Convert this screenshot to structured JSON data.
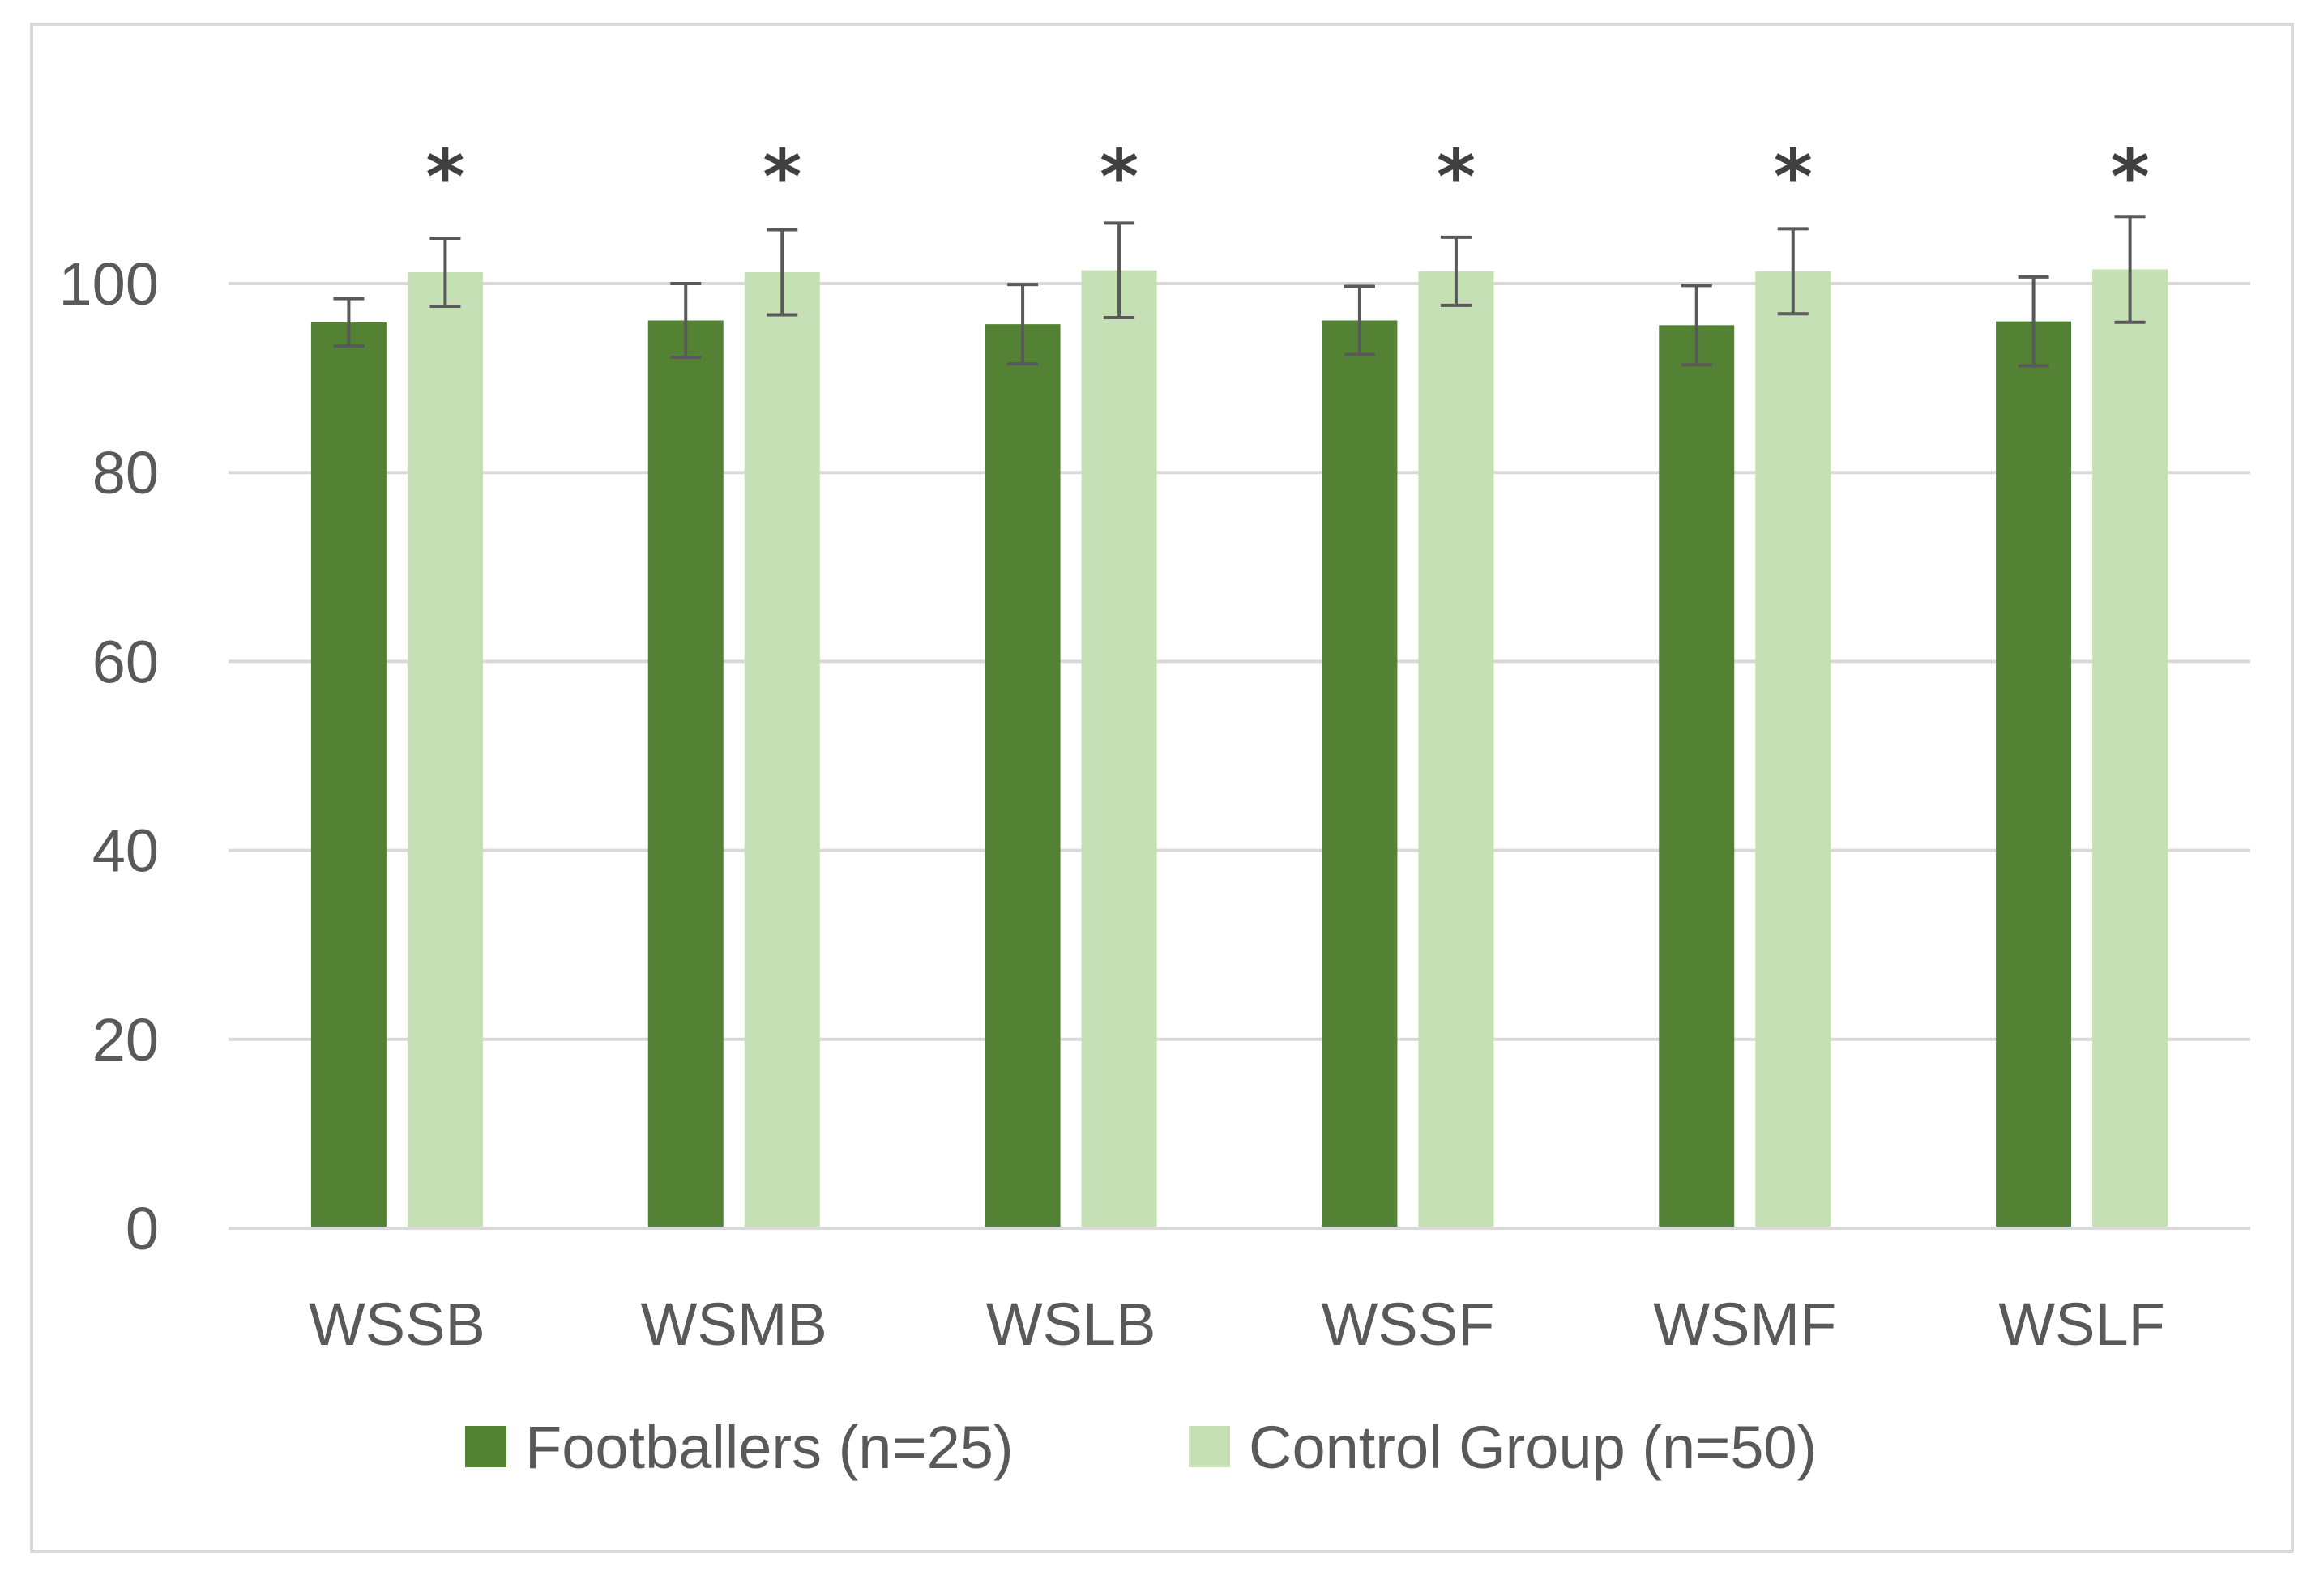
{
  "chart_data": {
    "type": "bar",
    "title": "",
    "xlabel": "",
    "ylabel": "",
    "ylim": [
      0,
      100
    ],
    "yticks": [
      0,
      20,
      40,
      60,
      80,
      100
    ],
    "grid": true,
    "legend_position": "bottom",
    "categories": [
      "WSSB",
      "WSMB",
      "WSLB",
      "WSSF",
      "WSMF",
      "WSLF"
    ],
    "series": [
      {
        "name": "Footballers (n=25)",
        "color": "#548235",
        "values": [
          95.9,
          96.1,
          95.7,
          96.1,
          95.6,
          96.0
        ],
        "error": [
          2.5,
          3.9,
          4.2,
          3.6,
          4.2,
          4.7
        ]
      },
      {
        "name": "Control Group (n=50)",
        "color": "#c5e0b4",
        "values": [
          101.2,
          101.2,
          101.4,
          101.3,
          101.3,
          101.5
        ],
        "error": [
          3.6,
          4.5,
          5.0,
          3.6,
          4.5,
          5.6
        ]
      }
    ],
    "annotations": [
      "*",
      "*",
      "*",
      "*",
      "*",
      "*"
    ]
  }
}
